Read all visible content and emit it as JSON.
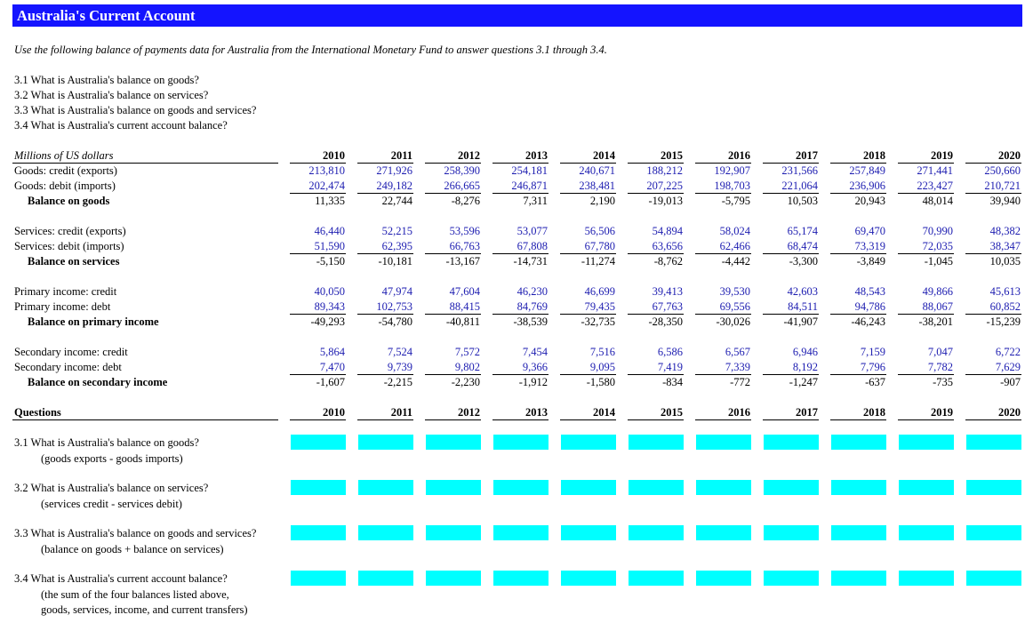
{
  "title": "Australia's Current Account",
  "instructions": "Use the following balance of payments data for Australia from the International Monetary Fund to answer questions 3.1 through 3.4.",
  "questions": [
    "3.1  What is Australia's balance on goods?",
    "3.2  What is Australia's balance on services?",
    "3.3  What is Australia's balance on goods and services?",
    "3.4  What is Australia's current account balance?"
  ],
  "table": {
    "unit_label": "Millions of US dollars",
    "years": [
      "2010",
      "2011",
      "2012",
      "2013",
      "2014",
      "2015",
      "2016",
      "2017",
      "2018",
      "2019",
      "2020"
    ],
    "sections": [
      {
        "rows": [
          {
            "label": "Goods: credit (exports)",
            "values": [
              "213,810",
              "271,926",
              "258,390",
              "254,181",
              "240,671",
              "188,212",
              "192,907",
              "231,566",
              "257,849",
              "271,441",
              "250,660"
            ]
          },
          {
            "label": "Goods: debit (imports)",
            "values": [
              "202,474",
              "249,182",
              "266,665",
              "246,871",
              "238,481",
              "207,225",
              "198,703",
              "221,064",
              "236,906",
              "223,427",
              "210,721"
            ]
          },
          {
            "label": "Balance on goods",
            "values": [
              "11,335",
              "22,744",
              "-8,276",
              "7,311",
              "2,190",
              "-19,013",
              "-5,795",
              "10,503",
              "20,943",
              "48,014",
              "39,940"
            ]
          }
        ]
      },
      {
        "rows": [
          {
            "label": "Services: credit (exports)",
            "values": [
              "46,440",
              "52,215",
              "53,596",
              "53,077",
              "56,506",
              "54,894",
              "58,024",
              "65,174",
              "69,470",
              "70,990",
              "48,382"
            ]
          },
          {
            "label": "Services: debit (imports)",
            "values": [
              "51,590",
              "62,395",
              "66,763",
              "67,808",
              "67,780",
              "63,656",
              "62,466",
              "68,474",
              "73,319",
              "72,035",
              "38,347"
            ]
          },
          {
            "label": "Balance on services",
            "values": [
              "-5,150",
              "-10,181",
              "-13,167",
              "-14,731",
              "-11,274",
              "-8,762",
              "-4,442",
              "-3,300",
              "-3,849",
              "-1,045",
              "10,035"
            ]
          }
        ]
      },
      {
        "rows": [
          {
            "label": "Primary income: credit",
            "values": [
              "40,050",
              "47,974",
              "47,604",
              "46,230",
              "46,699",
              "39,413",
              "39,530",
              "42,603",
              "48,543",
              "49,866",
              "45,613"
            ]
          },
          {
            "label": "Primary income: debt",
            "values": [
              "89,343",
              "102,753",
              "88,415",
              "84,769",
              "79,435",
              "67,763",
              "69,556",
              "84,511",
              "94,786",
              "88,067",
              "60,852"
            ]
          },
          {
            "label": "Balance on primary income",
            "values": [
              "-49,293",
              "-54,780",
              "-40,811",
              "-38,539",
              "-32,735",
              "-28,350",
              "-30,026",
              "-41,907",
              "-46,243",
              "-38,201",
              "-15,239"
            ]
          }
        ]
      },
      {
        "rows": [
          {
            "label": "Secondary income: credit",
            "values": [
              "5,864",
              "7,524",
              "7,572",
              "7,454",
              "7,516",
              "6,586",
              "6,567",
              "6,946",
              "7,159",
              "7,047",
              "6,722"
            ]
          },
          {
            "label": "Secondary income: debt",
            "values": [
              "7,470",
              "9,739",
              "9,802",
              "9,366",
              "9,095",
              "7,419",
              "7,339",
              "8,192",
              "7,796",
              "7,782",
              "7,629"
            ]
          },
          {
            "label": "Balance on secondary income",
            "values": [
              "-1,607",
              "-2,215",
              "-2,230",
              "-1,912",
              "-1,580",
              "-834",
              "-772",
              "-1,247",
              "-637",
              "-735",
              "-907"
            ]
          }
        ]
      }
    ]
  },
  "answers": {
    "header": "Questions",
    "items": [
      {
        "question": "3.1  What is Australia's balance on goods?",
        "hints": [
          "(goods exports - goods imports)"
        ]
      },
      {
        "question": "3.2  What is Australia's balance on services?",
        "hints": [
          "(services credit - services debit)"
        ]
      },
      {
        "question": "3.3  What is Australia's balance on goods and services?",
        "hints": [
          "(balance on goods + balance on services)"
        ]
      },
      {
        "question": "3.4  What is Australia's current account balance?",
        "hints": [
          "(the sum of the four balances listed above,",
          "goods, services, income, and current transfers)"
        ]
      }
    ]
  }
}
